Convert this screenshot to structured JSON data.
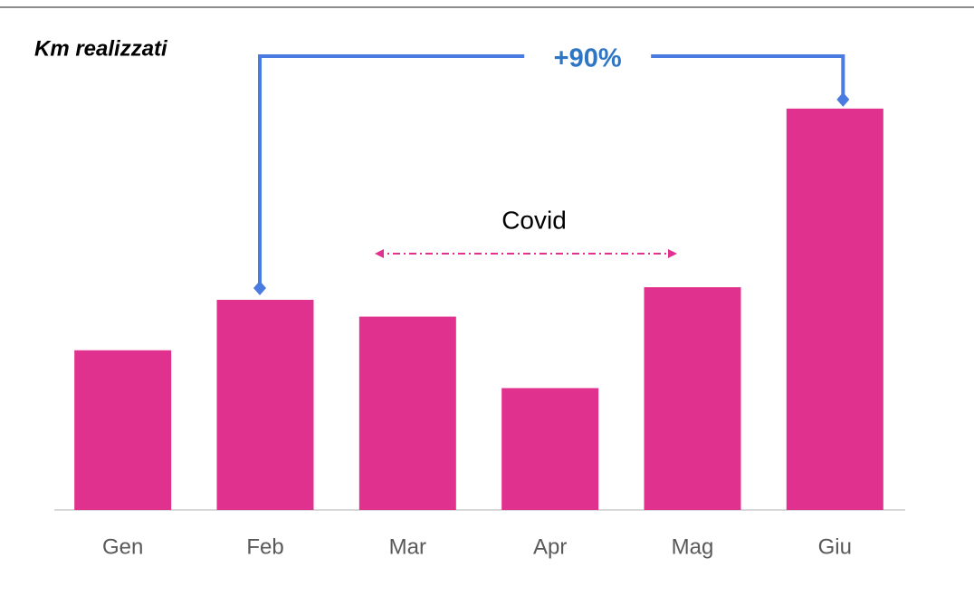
{
  "chart_data": {
    "type": "bar",
    "title": "Km realizzati",
    "categories": [
      "Gen",
      "Feb",
      "Mar",
      "Apr",
      "Mag",
      "Giu"
    ],
    "values": [
      76,
      100,
      92,
      58,
      106,
      191
    ],
    "color": "#e0318e",
    "ylim": [
      0,
      200
    ],
    "annotations": {
      "growth": "+90%",
      "period": "Covid"
    },
    "annotation_color": "#4a7be0",
    "growth_text_color": "#2e75c4"
  }
}
